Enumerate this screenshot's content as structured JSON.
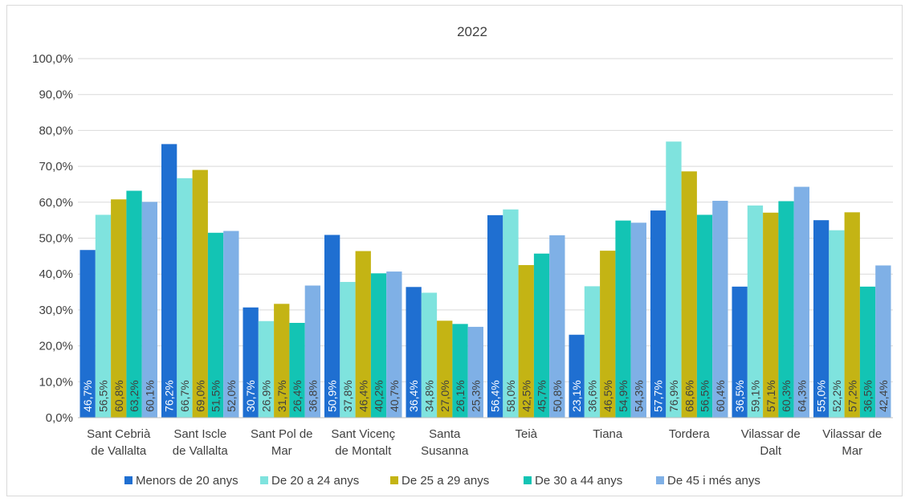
{
  "chart_data": {
    "type": "bar",
    "title": "2022",
    "xlabel": "",
    "ylabel": "",
    "ylim": [
      0,
      100
    ],
    "yticks": [
      "0,0%",
      "10,0%",
      "20,0%",
      "30,0%",
      "40,0%",
      "50,0%",
      "60,0%",
      "70,0%",
      "80,0%",
      "90,0%",
      "100,0%"
    ],
    "categories": [
      [
        "Sant Cebrià",
        "de Vallalta"
      ],
      [
        "Sant Iscle",
        "de Vallalta"
      ],
      [
        "Sant Pol de",
        "Mar"
      ],
      [
        "Sant Vicenç",
        "de Montalt"
      ],
      [
        "Santa",
        "Susanna"
      ],
      [
        "Teià"
      ],
      [
        "Tiana"
      ],
      [
        "Tordera"
      ],
      [
        "Vilassar de",
        "Dalt"
      ],
      [
        "Vilassar de",
        "Mar"
      ]
    ],
    "series": [
      {
        "name": "Menors de 20 anys",
        "color": "#1f6fd1",
        "label_color": "#ffffff",
        "values": [
          46.7,
          76.2,
          30.7,
          50.9,
          36.4,
          56.4,
          23.1,
          57.7,
          36.5,
          55.0
        ],
        "labels": [
          "46,7%",
          "76,2%",
          "30,7%",
          "50,9%",
          "36,4%",
          "56,4%",
          "23,1%",
          "57,7%",
          "36,5%",
          "55,0%"
        ]
      },
      {
        "name": "De 20 a 24 anys",
        "color": "#7fe3de",
        "label_color": "#404040",
        "values": [
          56.5,
          66.7,
          26.9,
          37.8,
          34.8,
          58.0,
          36.6,
          76.9,
          59.1,
          52.2
        ],
        "labels": [
          "56,5%",
          "66,7%",
          "26,9%",
          "37,8%",
          "34,8%",
          "58,0%",
          "36,6%",
          "76,9%",
          "59,1%",
          "52,2%"
        ]
      },
      {
        "name": "De 25 a 29 anys",
        "color": "#c4b414",
        "label_color": "#404040",
        "values": [
          60.8,
          69.0,
          31.7,
          46.4,
          27.0,
          42.5,
          46.5,
          68.6,
          57.1,
          57.2
        ],
        "labels": [
          "60,8%",
          "69,0%",
          "31,7%",
          "46,4%",
          "27,0%",
          "42,5%",
          "46,5%",
          "68,6%",
          "57,1%",
          "57,2%"
        ]
      },
      {
        "name": "De 30 a 44 anys",
        "color": "#13c4b4",
        "label_color": "#404040",
        "values": [
          63.2,
          51.5,
          26.4,
          40.2,
          26.1,
          45.7,
          54.9,
          56.5,
          60.3,
          36.5
        ],
        "labels": [
          "63,2%",
          "51,5%",
          "26,4%",
          "40,2%",
          "26,1%",
          "45,7%",
          "54,9%",
          "56,5%",
          "60,3%",
          "36,5%"
        ]
      },
      {
        "name": "De 45 i més anys",
        "color": "#7fb0e6",
        "label_color": "#404040",
        "values": [
          60.1,
          52.0,
          36.8,
          40.7,
          25.3,
          50.8,
          54.3,
          60.4,
          64.3,
          42.4
        ],
        "labels": [
          "60,1%",
          "52,0%",
          "36,8%",
          "40,7%",
          "25,3%",
          "50,8%",
          "54,3%",
          "60,4%",
          "64,3%",
          "42,4%"
        ]
      }
    ],
    "grid": true,
    "legend_position": "bottom"
  }
}
